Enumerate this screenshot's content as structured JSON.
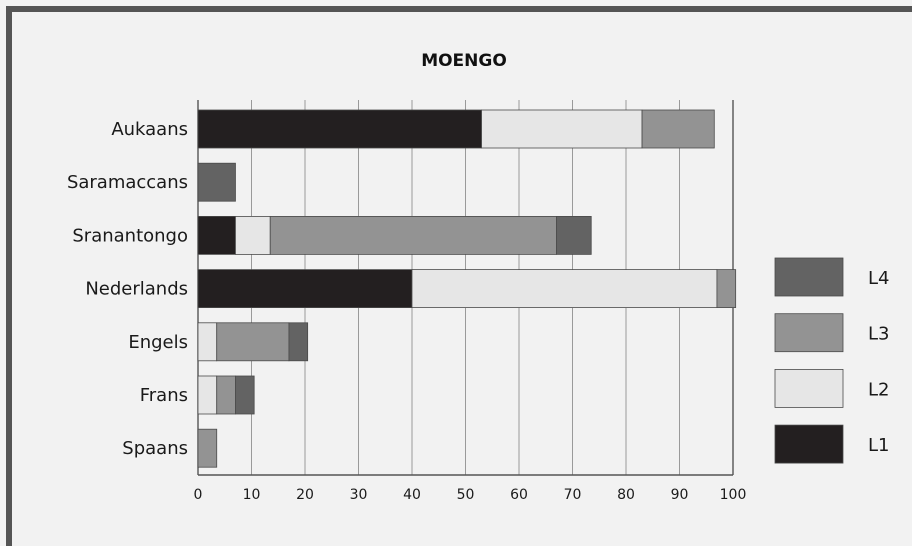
{
  "chart_data": {
    "type": "bar",
    "orientation": "horizontal",
    "stacked": true,
    "title": "MOENGO",
    "xlabel": "",
    "ylabel": "",
    "xlim": [
      0,
      100
    ],
    "xticks": [
      "0",
      "10",
      "20",
      "30",
      "40",
      "50",
      "60",
      "70",
      "80",
      "90",
      "100"
    ],
    "grid": "vertical",
    "legend_position": "right",
    "categories": [
      "Aukaans",
      "Saramaccans",
      "Sranantongo",
      "Nederlands",
      "Engels",
      "Frans",
      "Spaans"
    ],
    "series": [
      {
        "name": "L1",
        "color": "#231f20",
        "values": [
          53,
          0,
          7,
          40,
          0,
          0,
          0
        ]
      },
      {
        "name": "L2",
        "color": "#e6e6e6",
        "values": [
          30,
          0,
          6.5,
          57,
          3.5,
          3.5,
          0
        ]
      },
      {
        "name": "L3",
        "color": "#939393",
        "values": [
          13.5,
          0,
          53.5,
          3.5,
          13.5,
          3.5,
          3.5
        ]
      },
      {
        "name": "L4",
        "color": "#636363",
        "values": [
          0,
          7,
          6.5,
          0,
          3.5,
          3.5,
          0
        ]
      }
    ],
    "legend_order": [
      "L4",
      "L3",
      "L2",
      "L1"
    ]
  }
}
